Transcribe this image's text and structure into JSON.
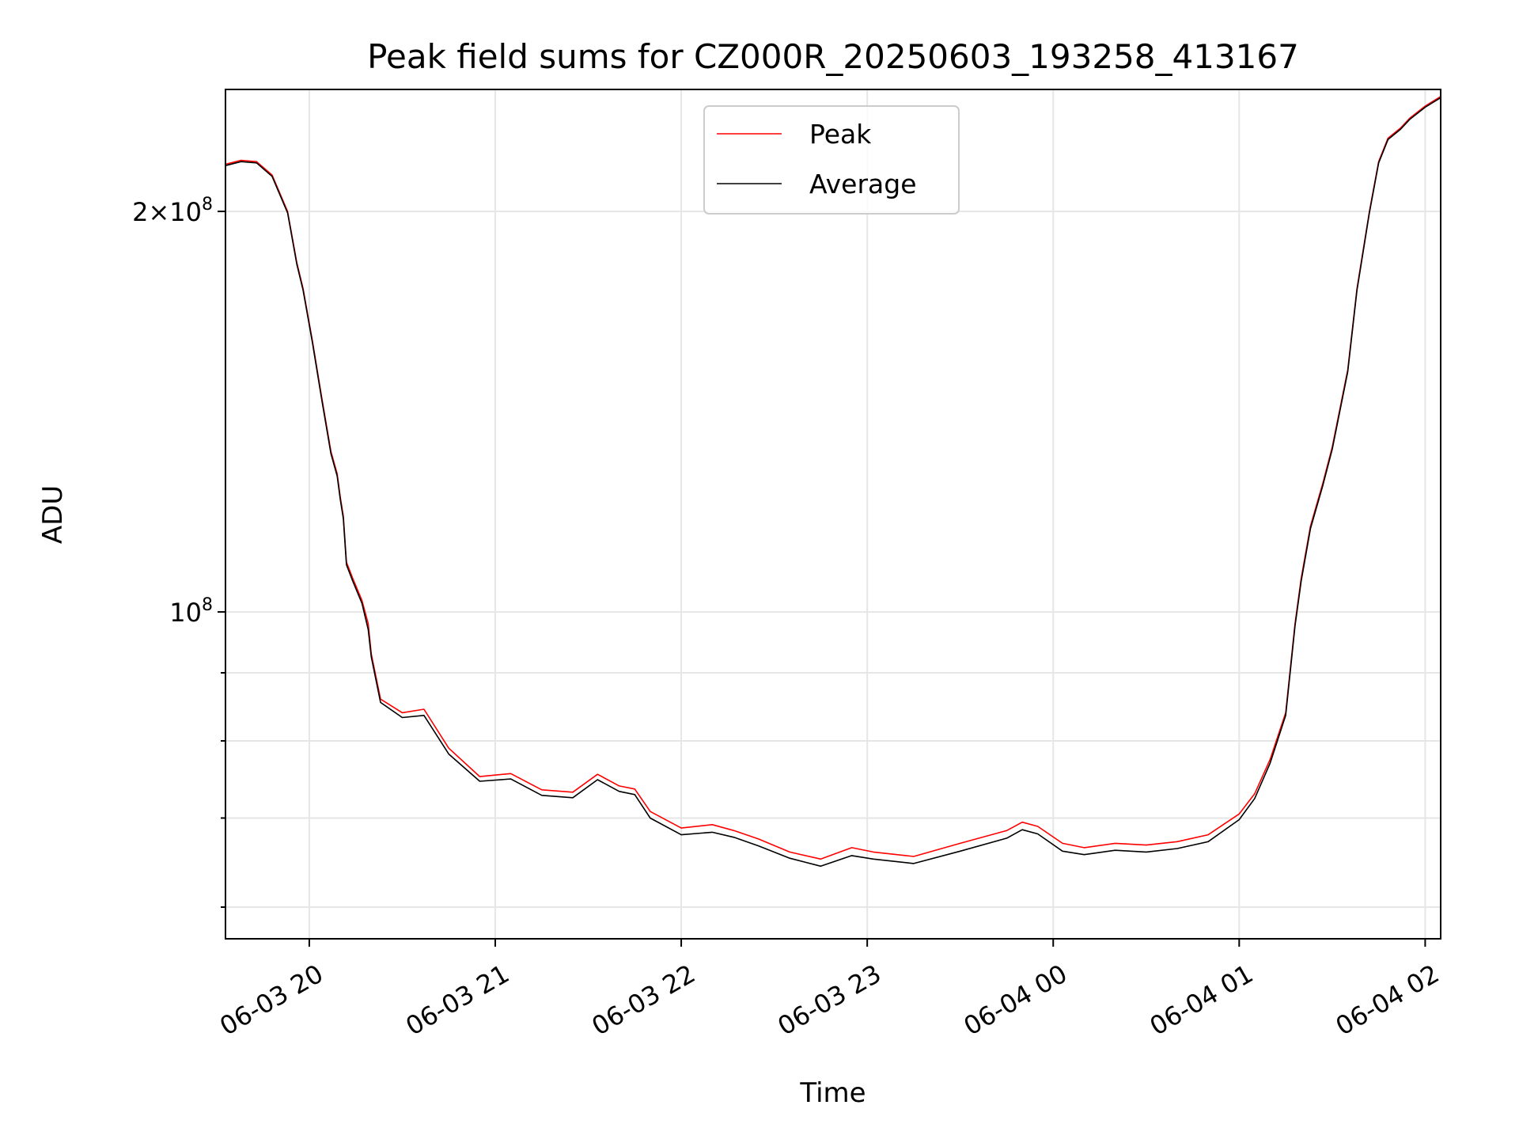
{
  "chart_data": {
    "type": "line",
    "title": "Peak field sums for CZ000R_20250603_193258_413167",
    "xlabel": "Time",
    "ylabel": "ADU",
    "x_axis": "time",
    "y_scale": "log",
    "xlim": [
      "2025-06-03 19:32:58",
      "2025-06-04 02:05:00"
    ],
    "ylim": [
      56800000,
      247000000
    ],
    "grid": true,
    "legend_position": "upper center",
    "x_ticks": [
      "06-03 20",
      "06-03 21",
      "06-03 22",
      "06-03 23",
      "06-04 00",
      "06-04 01",
      "06-04 02"
    ],
    "y_ticks_major": [
      {
        "value": 100000000,
        "label_base": "10",
        "label_exp": "8"
      },
      {
        "value": 200000000,
        "label_base": "2×10",
        "label_exp": "8"
      }
    ],
    "y_ticks_minor": [
      60000000,
      70000000,
      80000000,
      90000000
    ],
    "colors": {
      "peak": "#ff0000",
      "average": "#000000"
    },
    "series": [
      {
        "name": "Peak",
        "color": "#ff0000",
        "x": [
          "2025-06-03 19:32:58",
          "2025-06-03 19:38:00",
          "2025-06-03 19:43:00",
          "2025-06-03 19:48:00",
          "2025-06-03 19:53:00",
          "2025-06-03 19:56:00",
          "2025-06-03 19:58:00",
          "2025-06-03 20:01:00",
          "2025-06-03 20:04:00",
          "2025-06-03 20:07:00",
          "2025-06-03 20:09:00",
          "2025-06-03 20:10:00",
          "2025-06-03 20:11:00",
          "2025-06-03 20:12:00",
          "2025-06-03 20:14:00",
          "2025-06-03 20:17:00",
          "2025-06-03 20:19:00",
          "2025-06-03 20:20:00",
          "2025-06-03 20:23:00",
          "2025-06-03 20:30:00",
          "2025-06-03 20:37:00",
          "2025-06-03 20:45:00",
          "2025-06-03 20:55:00",
          "2025-06-03 21:05:00",
          "2025-06-03 21:15:00",
          "2025-06-03 21:25:00",
          "2025-06-03 21:33:00",
          "2025-06-03 21:40:00",
          "2025-06-03 21:45:00",
          "2025-06-03 21:50:00",
          "2025-06-03 22:00:00",
          "2025-06-03 22:10:00",
          "2025-06-03 22:17:00",
          "2025-06-03 22:25:00",
          "2025-06-03 22:35:00",
          "2025-06-03 22:45:00",
          "2025-06-03 22:55:00",
          "2025-06-03 23:02:00",
          "2025-06-03 23:15:00",
          "2025-06-03 23:30:00",
          "2025-06-03 23:45:00",
          "2025-06-03 23:50:00",
          "2025-06-03 23:55:00",
          "2025-06-04 00:03:00",
          "2025-06-04 00:10:00",
          "2025-06-04 00:20:00",
          "2025-06-04 00:30:00",
          "2025-06-04 00:40:00",
          "2025-06-04 00:50:00",
          "2025-06-04 01:00:00",
          "2025-06-04 01:05:00",
          "2025-06-04 01:10:00",
          "2025-06-04 01:15:00",
          "2025-06-04 01:18:00",
          "2025-06-04 01:20:00",
          "2025-06-04 01:23:00",
          "2025-06-04 01:27:00",
          "2025-06-04 01:30:00",
          "2025-06-04 01:35:00",
          "2025-06-04 01:38:00",
          "2025-06-04 01:42:00",
          "2025-06-04 01:45:00",
          "2025-06-04 01:48:00",
          "2025-06-04 01:52:00",
          "2025-06-04 01:55:00",
          "2025-06-04 02:00:00",
          "2025-06-04 02:05:00"
        ],
        "y": [
          217000000,
          218500000,
          218000000,
          213000000,
          200000000,
          183000000,
          175000000,
          160000000,
          145000000,
          132000000,
          127000000,
          122000000,
          118000000,
          109000000,
          106000000,
          102000000,
          98000000,
          93000000,
          86000000,
          84000000,
          84500000,
          79000000,
          75200000,
          75600000,
          73500000,
          73200000,
          75500000,
          74000000,
          73600000,
          70800000,
          68800000,
          69200000,
          68500000,
          67500000,
          66000000,
          65200000,
          66500000,
          66000000,
          65500000,
          67000000,
          68500000,
          69500000,
          69000000,
          67000000,
          66500000,
          67000000,
          66800000,
          67200000,
          68000000,
          70500000,
          73000000,
          77500000,
          84000000,
          98000000,
          106000000,
          116000000,
          125000000,
          133000000,
          152000000,
          175000000,
          200000000,
          218000000,
          227000000,
          231000000,
          235000000,
          240000000,
          244000000
        ]
      },
      {
        "name": "Average",
        "color": "#000000",
        "x": [
          "2025-06-03 19:32:58",
          "2025-06-03 19:38:00",
          "2025-06-03 19:43:00",
          "2025-06-03 19:48:00",
          "2025-06-03 19:53:00",
          "2025-06-03 19:56:00",
          "2025-06-03 19:58:00",
          "2025-06-03 20:01:00",
          "2025-06-03 20:04:00",
          "2025-06-03 20:07:00",
          "2025-06-03 20:09:00",
          "2025-06-03 20:10:00",
          "2025-06-03 20:11:00",
          "2025-06-03 20:12:00",
          "2025-06-03 20:14:00",
          "2025-06-03 20:17:00",
          "2025-06-03 20:19:00",
          "2025-06-03 20:20:00",
          "2025-06-03 20:23:00",
          "2025-06-03 20:30:00",
          "2025-06-03 20:37:00",
          "2025-06-03 20:45:00",
          "2025-06-03 20:55:00",
          "2025-06-03 21:05:00",
          "2025-06-03 21:15:00",
          "2025-06-03 21:25:00",
          "2025-06-03 21:33:00",
          "2025-06-03 21:40:00",
          "2025-06-03 21:45:00",
          "2025-06-03 21:50:00",
          "2025-06-03 22:00:00",
          "2025-06-03 22:10:00",
          "2025-06-03 22:17:00",
          "2025-06-03 22:25:00",
          "2025-06-03 22:35:00",
          "2025-06-03 22:45:00",
          "2025-06-03 22:55:00",
          "2025-06-03 23:02:00",
          "2025-06-03 23:15:00",
          "2025-06-03 23:30:00",
          "2025-06-03 23:45:00",
          "2025-06-03 23:50:00",
          "2025-06-03 23:55:00",
          "2025-06-04 00:03:00",
          "2025-06-04 00:10:00",
          "2025-06-04 00:20:00",
          "2025-06-04 00:30:00",
          "2025-06-04 00:40:00",
          "2025-06-04 00:50:00",
          "2025-06-04 01:00:00",
          "2025-06-04 01:05:00",
          "2025-06-04 01:10:00",
          "2025-06-04 01:15:00",
          "2025-06-04 01:18:00",
          "2025-06-04 01:20:00",
          "2025-06-04 01:23:00",
          "2025-06-04 01:27:00",
          "2025-06-04 01:30:00",
          "2025-06-04 01:35:00",
          "2025-06-04 01:38:00",
          "2025-06-04 01:42:00",
          "2025-06-04 01:45:00",
          "2025-06-04 01:48:00",
          "2025-06-04 01:52:00",
          "2025-06-04 01:55:00",
          "2025-06-04 02:00:00",
          "2025-06-04 02:05:00"
        ],
        "y": [
          216500000,
          218000000,
          217500000,
          212500000,
          199500000,
          182500000,
          174500000,
          159500000,
          144500000,
          131500000,
          126500000,
          121500000,
          117500000,
          108500000,
          105500000,
          101500000,
          97000000,
          92500000,
          85500000,
          83300000,
          83600000,
          78200000,
          74600000,
          74900000,
          72800000,
          72500000,
          74800000,
          73300000,
          72900000,
          70000000,
          68000000,
          68300000,
          67700000,
          66700000,
          65300000,
          64400000,
          65600000,
          65200000,
          64700000,
          66100000,
          67600000,
          68600000,
          68100000,
          66100000,
          65700000,
          66200000,
          66000000,
          66400000,
          67200000,
          69800000,
          72400000,
          77000000,
          83600000,
          97600000,
          105500000,
          115500000,
          124500000,
          132500000,
          151500000,
          174500000,
          199500000,
          217500000,
          226500000,
          230500000,
          234500000,
          239500000,
          243500000
        ]
      }
    ]
  }
}
